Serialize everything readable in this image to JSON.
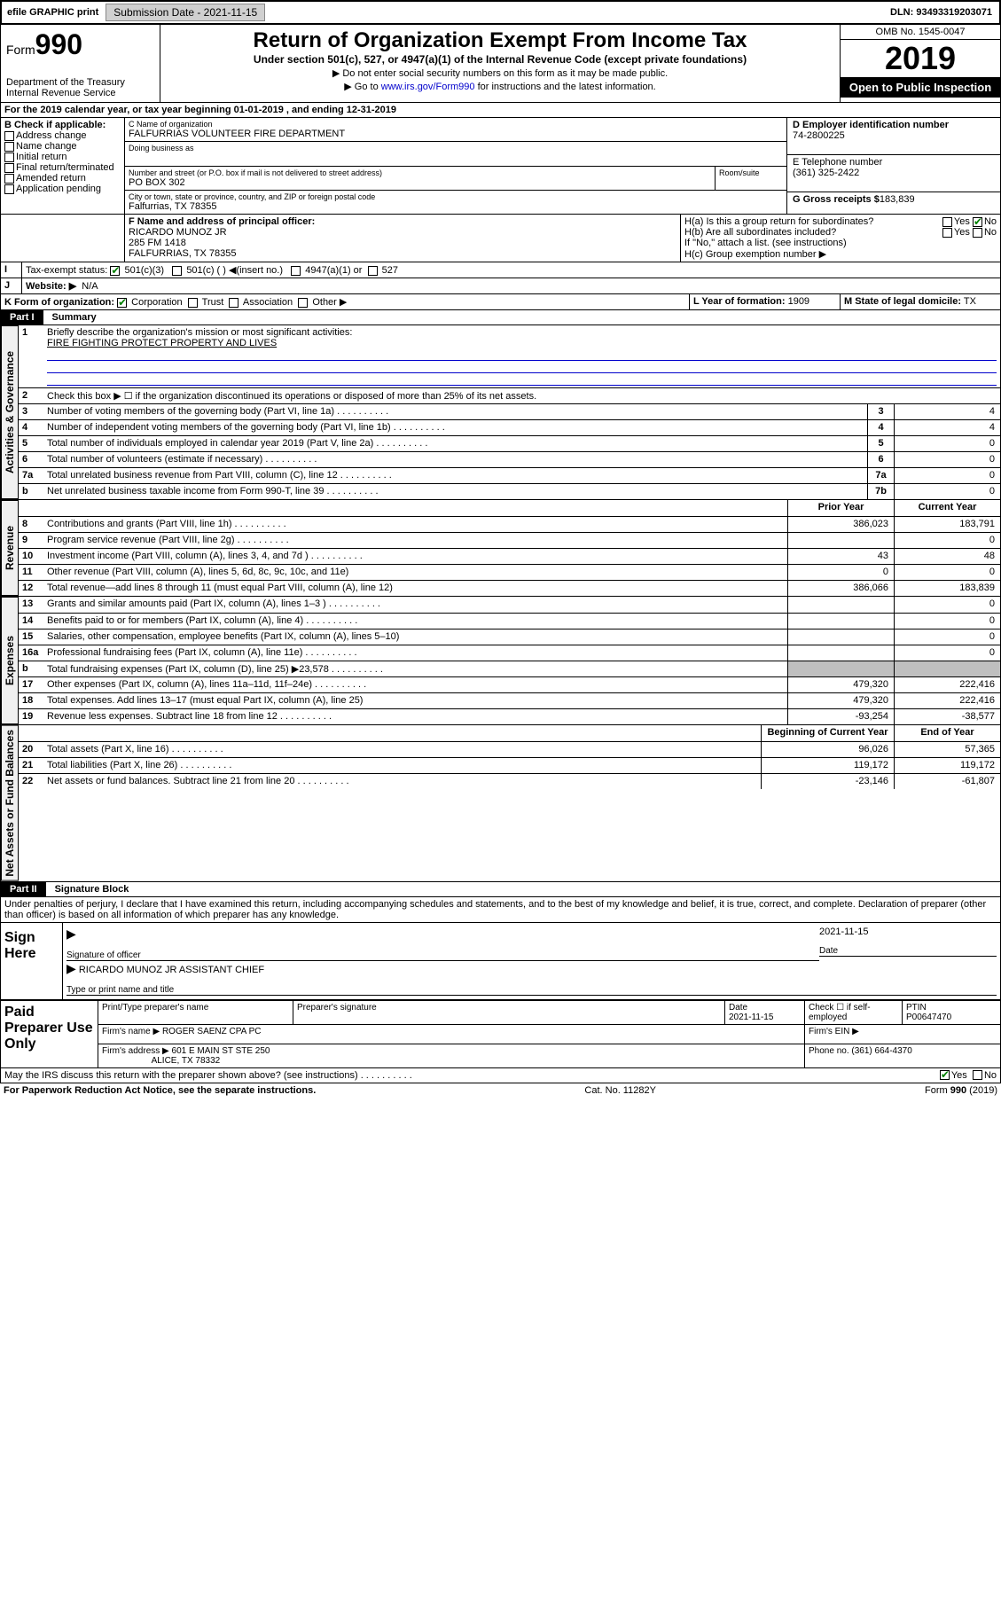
{
  "topbar": {
    "efile": "efile GRAPHIC print",
    "subdate_label": "Submission Date - ",
    "subdate": "2021-11-15",
    "dln_label": "DLN: ",
    "dln": "93493319203071"
  },
  "header": {
    "form_label": "Form",
    "form_num": "990",
    "dept": "Department of the Treasury",
    "irs": "Internal Revenue Service",
    "title": "Return of Organization Exempt From Income Tax",
    "subtitle": "Under section 501(c), 527, or 4947(a)(1) of the Internal Revenue Code (except private foundations)",
    "instr1": "▶ Do not enter social security numbers on this form as it may be made public.",
    "instr2_pre": "▶ Go to ",
    "instr2_link": "www.irs.gov/Form990",
    "instr2_post": " for instructions and the latest information.",
    "omb": "OMB No. 1545-0047",
    "year": "2019",
    "openpub": "Open to Public Inspection"
  },
  "lineA": "For the 2019 calendar year, or tax year beginning 01-01-2019    , and ending 12-31-2019",
  "boxB": {
    "label": "B Check if applicable:",
    "items": [
      "Address change",
      "Name change",
      "Initial return",
      "Final return/terminated",
      "Amended return",
      "Application pending"
    ]
  },
  "boxC": {
    "name_label": "C Name of organization",
    "name": "FALFURRIAS VOLUNTEER FIRE DEPARTMENT",
    "dba_label": "Doing business as",
    "street_label": "Number and street (or P.O. box if mail is not delivered to street address)",
    "room_label": "Room/suite",
    "street": "PO BOX 302",
    "city_label": "City or town, state or province, country, and ZIP or foreign postal code",
    "city": "Falfurrias, TX  78355"
  },
  "boxD": {
    "label": "D Employer identification number",
    "val": "74-2800225"
  },
  "boxE": {
    "label": "E Telephone number",
    "val": "(361) 325-2422"
  },
  "boxG": {
    "label": "G Gross receipts $",
    "val": "183,839"
  },
  "boxF": {
    "label": "F Name and address of principal officer:",
    "name": "RICARDO MUNOZ JR",
    "addr1": "285 FM 1418",
    "addr2": "FALFURRIAS, TX  78355"
  },
  "boxH": {
    "a": "H(a)  Is this a group return for subordinates?",
    "b": "H(b)  Are all subordinates included?",
    "ifno": "If \"No,\" attach a list. (see instructions)",
    "c": "H(c)  Group exemption number ▶"
  },
  "taxexempt": {
    "label": "Tax-exempt status:",
    "c3": "501(c)(3)",
    "c": "501(c) (  ) ◀(insert no.)",
    "a1": "4947(a)(1) or",
    "s527": "527"
  },
  "boxJ": {
    "label": "Website: ▶",
    "val": "N/A"
  },
  "boxK": {
    "label": "K Form of organization:",
    "corp": "Corporation",
    "trust": "Trust",
    "assoc": "Association",
    "other": "Other ▶"
  },
  "boxL": {
    "label": "L Year of formation:",
    "val": "1909"
  },
  "boxM": {
    "label": "M State of legal domicile:",
    "val": "TX"
  },
  "part1": {
    "label": "Part I",
    "title": "Summary",
    "l1": "Briefly describe the organization's mission or most significant activities:",
    "l1val": "FIRE FIGHTING PROTECT PROPERTY AND LIVES",
    "l2": "Check this box ▶ ☐  if the organization discontinued its operations or disposed of more than 25% of its net assets.",
    "vtab1": "Activities & Governance",
    "vtab2": "Revenue",
    "vtab3": "Expenses",
    "vtab4": "Net Assets or Fund Balances",
    "rows_gov": [
      {
        "n": "3",
        "t": "Number of voting members of the governing body (Part VI, line 1a)",
        "box": "3",
        "v": "4"
      },
      {
        "n": "4",
        "t": "Number of independent voting members of the governing body (Part VI, line 1b)",
        "box": "4",
        "v": "4"
      },
      {
        "n": "5",
        "t": "Total number of individuals employed in calendar year 2019 (Part V, line 2a)",
        "box": "5",
        "v": "0"
      },
      {
        "n": "6",
        "t": "Total number of volunteers (estimate if necessary)",
        "box": "6",
        "v": "0"
      },
      {
        "n": "7a",
        "t": "Total unrelated business revenue from Part VIII, column (C), line 12",
        "box": "7a",
        "v": "0"
      },
      {
        "n": "b",
        "t": "Net unrelated business taxable income from Form 990-T, line 39",
        "box": "7b",
        "v": "0"
      }
    ],
    "col_prior": "Prior Year",
    "col_current": "Current Year",
    "rows_rev": [
      {
        "n": "8",
        "t": "Contributions and grants (Part VIII, line 1h)",
        "p": "386,023",
        "c": "183,791"
      },
      {
        "n": "9",
        "t": "Program service revenue (Part VIII, line 2g)",
        "p": "",
        "c": "0"
      },
      {
        "n": "10",
        "t": "Investment income (Part VIII, column (A), lines 3, 4, and 7d )",
        "p": "43",
        "c": "48"
      },
      {
        "n": "11",
        "t": "Other revenue (Part VIII, column (A), lines 5, 6d, 8c, 9c, 10c, and 11e)",
        "p": "0",
        "c": "0"
      },
      {
        "n": "12",
        "t": "Total revenue—add lines 8 through 11 (must equal Part VIII, column (A), line 12)",
        "p": "386,066",
        "c": "183,839"
      }
    ],
    "rows_exp": [
      {
        "n": "13",
        "t": "Grants and similar amounts paid (Part IX, column (A), lines 1–3 )",
        "p": "",
        "c": "0"
      },
      {
        "n": "14",
        "t": "Benefits paid to or for members (Part IX, column (A), line 4)",
        "p": "",
        "c": "0"
      },
      {
        "n": "15",
        "t": "Salaries, other compensation, employee benefits (Part IX, column (A), lines 5–10)",
        "p": "",
        "c": "0"
      },
      {
        "n": "16a",
        "t": "Professional fundraising fees (Part IX, column (A), line 11e)",
        "p": "",
        "c": "0"
      },
      {
        "n": "b",
        "t": "Total fundraising expenses (Part IX, column (D), line 25) ▶23,578",
        "p": "SHADE",
        "c": "SHADE"
      },
      {
        "n": "17",
        "t": "Other expenses (Part IX, column (A), lines 11a–11d, 11f–24e)",
        "p": "479,320",
        "c": "222,416"
      },
      {
        "n": "18",
        "t": "Total expenses. Add lines 13–17 (must equal Part IX, column (A), line 25)",
        "p": "479,320",
        "c": "222,416"
      },
      {
        "n": "19",
        "t": "Revenue less expenses. Subtract line 18 from line 12",
        "p": "-93,254",
        "c": "-38,577"
      }
    ],
    "col_begin": "Beginning of Current Year",
    "col_end": "End of Year",
    "rows_net": [
      {
        "n": "20",
        "t": "Total assets (Part X, line 16)",
        "p": "96,026",
        "c": "57,365"
      },
      {
        "n": "21",
        "t": "Total liabilities (Part X, line 26)",
        "p": "119,172",
        "c": "119,172"
      },
      {
        "n": "22",
        "t": "Net assets or fund balances. Subtract line 21 from line 20",
        "p": "-23,146",
        "c": "-61,807"
      }
    ]
  },
  "part2": {
    "label": "Part II",
    "title": "Signature Block",
    "decl": "Under penalties of perjury, I declare that I have examined this return, including accompanying schedules and statements, and to the best of my knowledge and belief, it is true, correct, and complete. Declaration of preparer (other than officer) is based on all information of which preparer has any knowledge."
  },
  "sign": {
    "side": "Sign Here",
    "sig_label": "Signature of officer",
    "date_label": "Date",
    "date": "2021-11-15",
    "name": "RICARDO MUNOZ JR  ASSISTANT CHIEF",
    "name_label": "Type or print name and title"
  },
  "prep": {
    "side": "Paid Preparer Use Only",
    "c1": "Print/Type preparer's name",
    "c2": "Preparer's signature",
    "c3": "Date",
    "c3v": "2021-11-15",
    "c4": "Check ☐  if self-employed",
    "c5": "PTIN",
    "c5v": "P00647470",
    "firm_label": "Firm's name    ▶",
    "firm": "ROGER SAENZ CPA PC",
    "ein_label": "Firm's EIN ▶",
    "addr_label": "Firm's address ▶",
    "addr1": "601 E MAIN ST STE 250",
    "addr2": "ALICE, TX  78332",
    "phone_label": "Phone no.",
    "phone": "(361) 664-4370"
  },
  "discuss": {
    "text": "May the IRS discuss this return with the preparer shown above? (see instructions)",
    "yes": "Yes",
    "no": "No"
  },
  "footer": {
    "left": "For Paperwork Reduction Act Notice, see the separate instructions.",
    "mid": "Cat. No. 11282Y",
    "right": "Form 990 (2019)"
  },
  "yesno": {
    "yes": "Yes",
    "no": "No"
  }
}
